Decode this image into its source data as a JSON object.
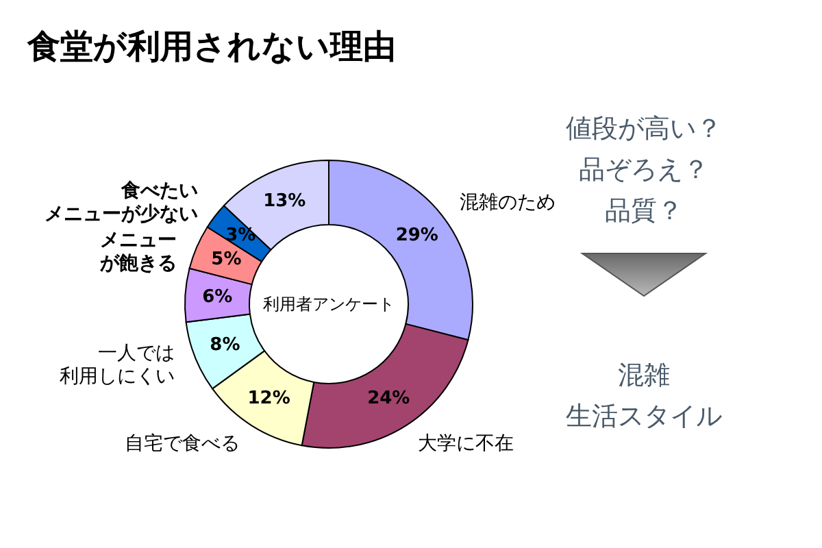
{
  "chart_data": {
    "type": "donut",
    "title": "食堂が利用されない理由",
    "categories": [
      "混雑のため",
      "大学に不在",
      "自宅で食べる",
      "一人では利用しにくい",
      null,
      "メニューが飽きる",
      "食べたいメニューが少ない",
      null
    ],
    "values": [
      29,
      24,
      12,
      8,
      6,
      5,
      3,
      13
    ],
    "value_labels": [
      "29%",
      "24%",
      "12%",
      "8%",
      "6%",
      "5%",
      "3%",
      "13%"
    ],
    "colors": [
      "#aaaaff",
      "#a3446f",
      "#ffffcc",
      "#ccffff",
      "#cc99ff",
      "#ff8c8c",
      "#0066cc",
      "#d4d4ff"
    ],
    "annotations": [
      "利用者アンケート",
      "値段が高い？",
      "品ぞろえ？",
      "品質？",
      "混雑",
      "生活スタイル"
    ]
  }
}
